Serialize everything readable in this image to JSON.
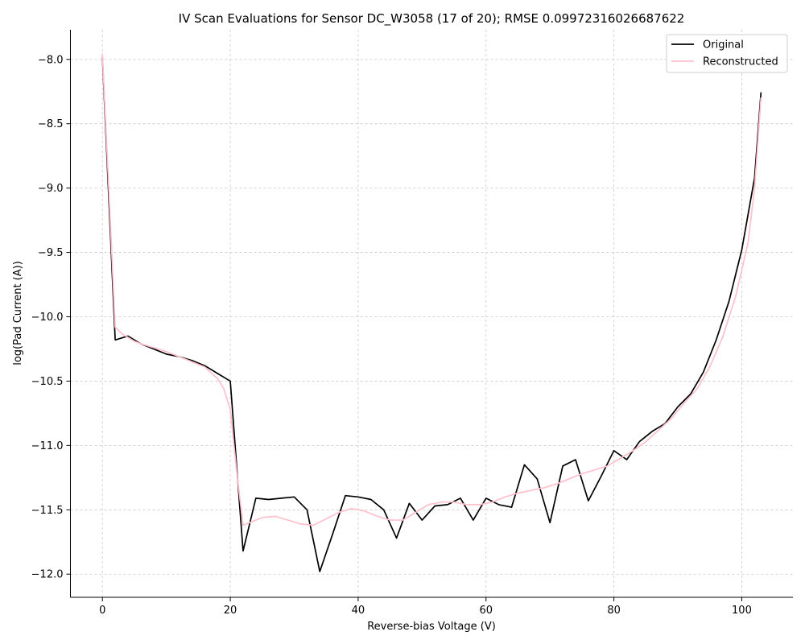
{
  "chart_data": {
    "type": "line",
    "title": "IV Scan Evaluations for Sensor DC_W3058 (17 of 20); RMSE 0.09972316026687622",
    "xlabel": "Reverse-bias Voltage (V)",
    "ylabel": "log(Pad Current (A))",
    "xlim": [
      -5,
      108
    ],
    "ylim": [
      -12.18,
      -7.77
    ],
    "xticks": [
      0,
      20,
      40,
      60,
      80,
      100
    ],
    "yticks": [
      -8.0,
      -8.5,
      -9.0,
      -9.5,
      -10.0,
      -10.5,
      -11.0,
      -11.5,
      -12.0
    ],
    "grid": true,
    "legend_position": "top-right",
    "series": [
      {
        "name": "Original",
        "color": "#000000",
        "x": [
          0,
          2,
          4,
          6,
          8,
          10,
          12,
          14,
          16,
          18,
          20,
          22,
          24,
          26,
          28,
          30,
          32,
          34,
          36,
          38,
          40,
          42,
          44,
          46,
          48,
          50,
          52,
          54,
          56,
          58,
          60,
          62,
          64,
          66,
          68,
          70,
          72,
          74,
          76,
          78,
          80,
          82,
          84,
          86,
          88,
          90,
          92,
          94,
          96,
          98,
          100,
          102,
          103
        ],
        "y": [
          -7.98,
          -10.18,
          -10.15,
          -10.21,
          -10.25,
          -10.29,
          -10.31,
          -10.34,
          -10.38,
          -10.44,
          -10.5,
          -11.82,
          -11.41,
          -11.42,
          -11.41,
          -11.4,
          -11.5,
          -11.98,
          -11.69,
          -11.39,
          -11.4,
          -11.42,
          -11.5,
          -11.72,
          -11.45,
          -11.58,
          -11.47,
          -11.46,
          -11.41,
          -11.58,
          -11.41,
          -11.46,
          -11.48,
          -11.15,
          -11.26,
          -11.6,
          -11.16,
          -11.11,
          -11.43,
          -11.24,
          -11.04,
          -11.11,
          -10.97,
          -10.89,
          -10.83,
          -10.7,
          -10.6,
          -10.43,
          -10.18,
          -9.88,
          -9.48,
          -8.92,
          -8.26
        ]
      },
      {
        "name": "Reconstructed",
        "color": "#ffc0cb",
        "x": [
          0,
          1,
          2,
          3,
          4,
          5,
          6,
          8,
          10,
          12,
          14,
          16,
          18,
          19,
          20,
          21,
          22,
          23,
          25,
          27,
          29,
          31,
          33,
          35,
          37,
          39,
          41,
          43,
          45,
          47,
          49,
          51,
          53,
          55,
          57,
          59,
          61,
          63,
          65,
          67,
          69,
          71,
          73,
          75,
          77,
          79,
          81,
          83,
          85,
          87,
          89,
          91,
          93,
          95,
          97,
          99,
          101,
          102,
          103
        ],
        "y": [
          -7.96,
          -9.0,
          -10.08,
          -10.13,
          -10.16,
          -10.19,
          -10.21,
          -10.24,
          -10.27,
          -10.31,
          -10.35,
          -10.39,
          -10.48,
          -10.56,
          -10.72,
          -11.2,
          -11.62,
          -11.6,
          -11.56,
          -11.55,
          -11.58,
          -11.61,
          -11.62,
          -11.57,
          -11.52,
          -11.49,
          -11.51,
          -11.55,
          -11.58,
          -11.58,
          -11.52,
          -11.46,
          -11.44,
          -11.44,
          -11.46,
          -11.46,
          -11.44,
          -11.4,
          -11.37,
          -11.35,
          -11.33,
          -11.3,
          -11.26,
          -11.22,
          -11.19,
          -11.16,
          -11.1,
          -11.04,
          -10.97,
          -10.88,
          -10.79,
          -10.67,
          -10.56,
          -10.39,
          -10.16,
          -9.85,
          -9.42,
          -9.0,
          -8.3
        ]
      }
    ]
  }
}
